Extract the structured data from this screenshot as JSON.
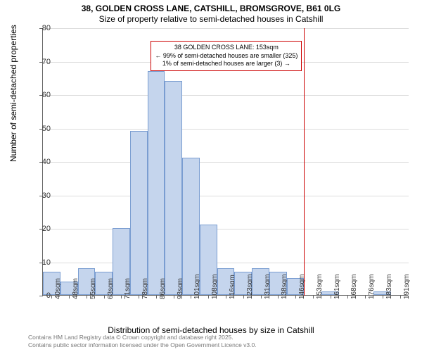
{
  "title_line1": "38, GOLDEN CROSS LANE, CATSHILL, BROMSGROVE, B61 0LG",
  "title_line2": "Size of property relative to semi-detached houses in Catshill",
  "y_axis_label": "Number of semi-detached properties",
  "x_axis_label": "Distribution of semi-detached houses by size in Catshill",
  "chart": {
    "type": "histogram",
    "ylim": [
      0,
      80
    ],
    "ytick_step": 10,
    "bar_fill": "#c5d5ed",
    "bar_stroke": "#7a9dd1",
    "grid_color": "#ddd",
    "background_color": "#ffffff",
    "x_labels": [
      "40sqm",
      "48sqm",
      "55sqm",
      "63sqm",
      "71sqm",
      "78sqm",
      "86sqm",
      "93sqm",
      "101sqm",
      "108sqm",
      "116sqm",
      "123sqm",
      "131sqm",
      "138sqm",
      "146sqm",
      "153sqm",
      "161sqm",
      "168sqm",
      "176sqm",
      "183sqm",
      "191sqm"
    ],
    "values": [
      7,
      4,
      8,
      7,
      20,
      49,
      67,
      64,
      41,
      21,
      8,
      7,
      8,
      7,
      5,
      0,
      1,
      0,
      0,
      1,
      0
    ],
    "vline_index": 15,
    "vline_color": "#cc0000"
  },
  "annotation": {
    "line1": "38 GOLDEN CROSS LANE: 153sqm",
    "line2": "← 99% of semi-detached houses are smaller (325)",
    "line3": "1% of semi-detached houses are larger (3) →",
    "border_color": "#cc0000"
  },
  "footer_line1": "Contains HM Land Registry data © Crown copyright and database right 2025.",
  "footer_line2": "Contains public sector information licensed under the Open Government Licence v3.0."
}
